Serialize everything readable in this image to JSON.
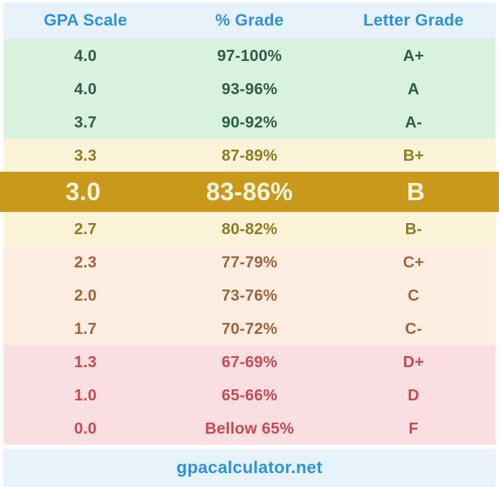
{
  "table": {
    "columns": [
      "GPA Scale",
      "% Grade",
      "Letter Grade"
    ],
    "rows": [
      {
        "gpa": "4.0",
        "percent": "97-100%",
        "letter": "A+",
        "tier": "green",
        "highlighted": false
      },
      {
        "gpa": "4.0",
        "percent": "93-96%",
        "letter": "A",
        "tier": "green",
        "highlighted": false
      },
      {
        "gpa": "3.7",
        "percent": "90-92%",
        "letter": "A-",
        "tier": "green",
        "highlighted": false
      },
      {
        "gpa": "3.3",
        "percent": "87-89%",
        "letter": "B+",
        "tier": "cream",
        "highlighted": false
      },
      {
        "gpa": "3.0",
        "percent": "83-86%",
        "letter": "B",
        "tier": "gold",
        "highlighted": true
      },
      {
        "gpa": "2.7",
        "percent": "80-82%",
        "letter": "B-",
        "tier": "cream",
        "highlighted": false
      },
      {
        "gpa": "2.3",
        "percent": "77-79%",
        "letter": "C+",
        "tier": "peach",
        "highlighted": false
      },
      {
        "gpa": "2.0",
        "percent": "73-76%",
        "letter": "C",
        "tier": "peach",
        "highlighted": false
      },
      {
        "gpa": "1.7",
        "percent": "70-72%",
        "letter": "C-",
        "tier": "peach",
        "highlighted": false
      },
      {
        "gpa": "1.3",
        "percent": "67-69%",
        "letter": "D+",
        "tier": "pink",
        "highlighted": false
      },
      {
        "gpa": "1.0",
        "percent": "65-66%",
        "letter": "D",
        "tier": "pink",
        "highlighted": false
      },
      {
        "gpa": "0.0",
        "percent": "Bellow 65%",
        "letter": "F",
        "tier": "pink",
        "highlighted": false
      }
    ]
  },
  "footer": {
    "site": "gpacalculator.net"
  },
  "colors": {
    "tiers": {
      "header": {
        "bg": "#e7f2fb",
        "fg": "#2e93d6"
      },
      "green": {
        "bg": "#d9f2de",
        "fg": "#2d5e46"
      },
      "cream": {
        "bg": "#fbf3d8",
        "fg": "#8e7c24"
      },
      "gold": {
        "bg": "#c8991a",
        "fg": "#f8f3e0"
      },
      "peach": {
        "bg": "#fdeee1",
        "fg": "#a2633a"
      },
      "pink": {
        "bg": "#fadfe2",
        "fg": "#c74a51"
      },
      "footer": {
        "bg": "#e7f2fb",
        "fg": "#2e93d6"
      }
    }
  }
}
